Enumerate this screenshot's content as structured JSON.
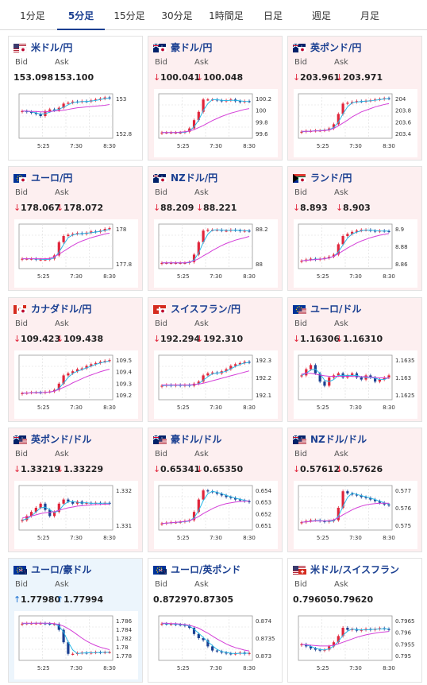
{
  "tabs": [
    {
      "label": "1分足",
      "active": false
    },
    {
      "label": "5分足",
      "active": true
    },
    {
      "label": "15分足",
      "active": false
    },
    {
      "label": "30分足",
      "active": false
    },
    {
      "label": "1時間足",
      "active": false
    },
    {
      "label": "日足",
      "active": false
    },
    {
      "label": "週足",
      "active": false
    },
    {
      "label": "月足",
      "active": false
    }
  ],
  "labels": {
    "bid": "Bid",
    "ask": "Ask"
  },
  "colors": {
    "up_candle": "#e0243a",
    "down_candle": "#1a3f91",
    "ma_short": "#2ab7e6",
    "ma_long": "#d440d8",
    "down_arrow": "#e0243a",
    "up_arrow": "#1a6fd0",
    "link": "#1a3f91"
  },
  "cards": [
    {
      "pair": "米ドル/円",
      "flag": "us-jp-flag-icon",
      "trend": "flat",
      "arrow": "",
      "bid": "153.098",
      "ask": "153.100",
      "chart_data": {
        "type": "candlestick",
        "x_ticks": [
          "5:25",
          "7:30",
          "8:30"
        ],
        "y_ticks": [
          "153",
          "152.8"
        ],
        "close": [
          0.62,
          0.6,
          0.58,
          0.55,
          0.5,
          0.62,
          0.66,
          0.64,
          0.7,
          0.8,
          0.82,
          0.85,
          0.84,
          0.86,
          0.85,
          0.88,
          0.9,
          0.92,
          0.95,
          0.93
        ],
        "ma_long": [
          0.62,
          0.62,
          0.61,
          0.61,
          0.6,
          0.6,
          0.61,
          0.62,
          0.63,
          0.64,
          0.66,
          0.68,
          0.7,
          0.71,
          0.72,
          0.73,
          0.74,
          0.75,
          0.76,
          0.78
        ]
      }
    },
    {
      "pair": "豪ドル/円",
      "flag": "au-jp-flag-icon",
      "trend": "down",
      "arrow": "↓",
      "bid": "100.041",
      "ask": "100.048",
      "chart_data": {
        "type": "candlestick",
        "x_ticks": [
          "5:25",
          "7:30",
          "8:30"
        ],
        "y_ticks": [
          "100.2",
          "100",
          "99.8",
          "99.6"
        ],
        "close": [
          0.1,
          0.1,
          0.1,
          0.1,
          0.1,
          0.12,
          0.2,
          0.4,
          0.6,
          0.9,
          0.9,
          0.9,
          0.88,
          0.86,
          0.88,
          0.9,
          0.86,
          0.84,
          0.86,
          0.85
        ],
        "ma_long": [
          0.1,
          0.1,
          0.1,
          0.1,
          0.11,
          0.12,
          0.14,
          0.17,
          0.22,
          0.27,
          0.33,
          0.39,
          0.44,
          0.49,
          0.53,
          0.57,
          0.6,
          0.63,
          0.66,
          0.68
        ]
      }
    },
    {
      "pair": "英ポンド/円",
      "flag": "gb-jp-flag-icon",
      "trend": "down",
      "arrow": "↓",
      "bid": "203.961",
      "ask": "203.971",
      "chart_data": {
        "type": "candlestick",
        "x_ticks": [
          "5:25",
          "7:30",
          "8:30"
        ],
        "y_ticks": [
          "204",
          "203.8",
          "203.6",
          "203.4"
        ],
        "close": [
          0.12,
          0.14,
          0.14,
          0.15,
          0.15,
          0.16,
          0.2,
          0.3,
          0.55,
          0.8,
          0.82,
          0.84,
          0.86,
          0.85,
          0.87,
          0.88,
          0.9,
          0.91,
          0.93,
          0.92
        ],
        "ma_long": [
          0.13,
          0.13,
          0.13,
          0.14,
          0.14,
          0.15,
          0.16,
          0.2,
          0.26,
          0.33,
          0.4,
          0.48,
          0.54,
          0.6,
          0.64,
          0.68,
          0.72,
          0.75,
          0.78,
          0.8
        ]
      }
    },
    {
      "pair": "ユーロ/円",
      "flag": "eu-jp-flag-icon",
      "trend": "down",
      "arrow": "↓",
      "bid": "178.067",
      "ask": "178.072",
      "chart_data": {
        "type": "candlestick",
        "x_ticks": [
          "5:25",
          "7:30",
          "8:30"
        ],
        "y_ticks": [
          "178",
          "177.8"
        ],
        "close": [
          0.2,
          0.2,
          0.2,
          0.18,
          0.18,
          0.18,
          0.2,
          0.28,
          0.6,
          0.75,
          0.78,
          0.8,
          0.82,
          0.8,
          0.83,
          0.86,
          0.85,
          0.88,
          0.92,
          0.94
        ],
        "ma_long": [
          0.2,
          0.2,
          0.2,
          0.2,
          0.2,
          0.2,
          0.21,
          0.25,
          0.31,
          0.38,
          0.45,
          0.52,
          0.58,
          0.63,
          0.67,
          0.71,
          0.74,
          0.77,
          0.8,
          0.82
        ]
      }
    },
    {
      "pair": "NZドル/円",
      "flag": "nz-jp-flag-icon",
      "trend": "down",
      "arrow": "↓",
      "bid": "88.209",
      "ask": "88.221",
      "chart_data": {
        "type": "candlestick",
        "x_ticks": [
          "5:25",
          "7:30",
          "8:30"
        ],
        "y_ticks": [
          "88.2",
          "88"
        ],
        "close": [
          0.1,
          0.1,
          0.1,
          0.1,
          0.1,
          0.1,
          0.12,
          0.3,
          0.6,
          0.88,
          0.9,
          0.9,
          0.9,
          0.88,
          0.88,
          0.9,
          0.89,
          0.87,
          0.88,
          0.87
        ],
        "ma_long": [
          0.1,
          0.1,
          0.1,
          0.1,
          0.1,
          0.1,
          0.12,
          0.15,
          0.2,
          0.27,
          0.33,
          0.4,
          0.46,
          0.52,
          0.57,
          0.61,
          0.65,
          0.68,
          0.71,
          0.74
        ]
      }
    },
    {
      "pair": "ランド/円",
      "flag": "za-jp-flag-icon",
      "trend": "down",
      "arrow": "↓",
      "bid": "8.893",
      "ask": "8.903",
      "chart_data": {
        "type": "candlestick",
        "x_ticks": [
          "5:25",
          "7:30",
          "8:30"
        ],
        "y_ticks": [
          "8.9",
          "8.88",
          "8.86"
        ],
        "close": [
          0.15,
          0.18,
          0.2,
          0.18,
          0.2,
          0.22,
          0.25,
          0.3,
          0.55,
          0.75,
          0.8,
          0.85,
          0.88,
          0.9,
          0.9,
          0.88,
          0.86,
          0.88,
          0.87,
          0.86
        ],
        "ma_long": [
          0.15,
          0.16,
          0.17,
          0.18,
          0.19,
          0.2,
          0.22,
          0.26,
          0.32,
          0.39,
          0.46,
          0.52,
          0.58,
          0.63,
          0.67,
          0.71,
          0.74,
          0.77,
          0.79,
          0.81
        ]
      }
    },
    {
      "pair": "カナダドル/円",
      "flag": "ca-jp-flag-icon",
      "trend": "down",
      "arrow": "↓",
      "bid": "109.423",
      "ask": "109.438",
      "chart_data": {
        "type": "candlestick",
        "x_ticks": [
          "5:25",
          "7:30",
          "8:30"
        ],
        "y_ticks": [
          "109.5",
          "109.4",
          "109.3",
          "109.2"
        ],
        "close": [
          0.12,
          0.13,
          0.14,
          0.14,
          0.13,
          0.15,
          0.16,
          0.2,
          0.35,
          0.55,
          0.6,
          0.65,
          0.7,
          0.72,
          0.78,
          0.82,
          0.85,
          0.88,
          0.9,
          0.92
        ],
        "ma_long": [
          0.12,
          0.12,
          0.13,
          0.13,
          0.13,
          0.14,
          0.15,
          0.17,
          0.21,
          0.26,
          0.31,
          0.37,
          0.42,
          0.47,
          0.52,
          0.56,
          0.6,
          0.64,
          0.67,
          0.7
        ]
      }
    },
    {
      "pair": "スイスフラン/円",
      "flag": "ch-jp-flag-icon",
      "trend": "down",
      "arrow": "↓",
      "bid": "192.294",
      "ask": "192.310",
      "chart_data": {
        "type": "candlestick",
        "x_ticks": [
          "5:25",
          "7:30",
          "8:30"
        ],
        "y_ticks": [
          "192.3",
          "192.2",
          "192.1"
        ],
        "close": [
          0.3,
          0.32,
          0.3,
          0.32,
          0.3,
          0.32,
          0.3,
          0.35,
          0.4,
          0.55,
          0.6,
          0.62,
          0.6,
          0.65,
          0.7,
          0.78,
          0.82,
          0.85,
          0.88,
          0.86
        ],
        "ma_long": [
          0.32,
          0.32,
          0.32,
          0.32,
          0.32,
          0.32,
          0.32,
          0.33,
          0.34,
          0.36,
          0.39,
          0.42,
          0.45,
          0.48,
          0.51,
          0.54,
          0.57,
          0.6,
          0.63,
          0.66
        ]
      }
    },
    {
      "pair": "ユーロ/ドル",
      "flag": "eu-us-flag-icon",
      "trend": "down",
      "arrow": "↓",
      "bid": "1.16306",
      "ask": "1.16310",
      "chart_data": {
        "type": "candlestick",
        "x_ticks": [
          "5:25",
          "7:30",
          "8:30"
        ],
        "y_ticks": [
          "1.1635",
          "1.163",
          "1.1625"
        ],
        "close": [
          0.55,
          0.7,
          0.8,
          0.6,
          0.4,
          0.3,
          0.5,
          0.55,
          0.6,
          0.5,
          0.55,
          0.6,
          0.5,
          0.45,
          0.55,
          0.5,
          0.4,
          0.45,
          0.5,
          0.55
        ],
        "ma_long": [
          0.58,
          0.6,
          0.6,
          0.58,
          0.56,
          0.54,
          0.53,
          0.53,
          0.53,
          0.53,
          0.53,
          0.53,
          0.52,
          0.52,
          0.52,
          0.51,
          0.5,
          0.49,
          0.49,
          0.48
        ]
      }
    },
    {
      "pair": "英ポンド/ドル",
      "flag": "gb-us-flag-icon",
      "trend": "down",
      "arrow": "↓",
      "bid": "1.33219",
      "ask": "1.33229",
      "chart_data": {
        "type": "candlestick",
        "x_ticks": [
          "5:25",
          "7:30",
          "8:30"
        ],
        "y_ticks": [
          "1.332",
          "1.331"
        ],
        "close": [
          0.2,
          0.3,
          0.4,
          0.5,
          0.6,
          0.45,
          0.3,
          0.4,
          0.6,
          0.7,
          0.65,
          0.6,
          0.65,
          0.6,
          0.62,
          0.6,
          0.62,
          0.6,
          0.62,
          0.6
        ],
        "ma_long": [
          0.25,
          0.28,
          0.3,
          0.33,
          0.36,
          0.38,
          0.39,
          0.41,
          0.44,
          0.47,
          0.5,
          0.52,
          0.54,
          0.55,
          0.56,
          0.57,
          0.58,
          0.58,
          0.59,
          0.59
        ]
      }
    },
    {
      "pair": "豪ドル/ドル",
      "flag": "au-us-flag-icon",
      "trend": "down",
      "arrow": "↓",
      "bid": "0.65341",
      "ask": "0.65350",
      "chart_data": {
        "type": "candlestick",
        "x_ticks": [
          "5:25",
          "7:30",
          "8:30"
        ],
        "y_ticks": [
          "0.654",
          "0.653",
          "0.652",
          "0.651"
        ],
        "close": [
          0.12,
          0.14,
          0.15,
          0.15,
          0.16,
          0.18,
          0.2,
          0.4,
          0.7,
          0.92,
          0.9,
          0.88,
          0.84,
          0.8,
          0.76,
          0.74,
          0.7,
          0.68,
          0.66,
          0.64
        ],
        "ma_long": [
          0.12,
          0.13,
          0.14,
          0.15,
          0.16,
          0.17,
          0.19,
          0.23,
          0.29,
          0.36,
          0.42,
          0.48,
          0.53,
          0.57,
          0.6,
          0.62,
          0.64,
          0.65,
          0.66,
          0.66
        ]
      }
    },
    {
      "pair": "NZドル/ドル",
      "flag": "nz-us-flag-icon",
      "trend": "down",
      "arrow": "↓",
      "bid": "0.57612",
      "ask": "0.57626",
      "chart_data": {
        "type": "candlestick",
        "x_ticks": [
          "5:25",
          "7:30",
          "8:30"
        ],
        "y_ticks": [
          "0.577",
          "0.576",
          "0.575"
        ],
        "close": [
          0.15,
          0.18,
          0.2,
          0.2,
          0.18,
          0.16,
          0.18,
          0.2,
          0.5,
          0.9,
          0.85,
          0.82,
          0.8,
          0.76,
          0.74,
          0.7,
          0.66,
          0.62,
          0.58,
          0.56
        ],
        "ma_long": [
          0.15,
          0.16,
          0.17,
          0.18,
          0.18,
          0.18,
          0.19,
          0.21,
          0.26,
          0.33,
          0.39,
          0.45,
          0.5,
          0.54,
          0.57,
          0.59,
          0.6,
          0.61,
          0.61,
          0.61
        ]
      }
    },
    {
      "pair": "ユーロ/豪ドル",
      "flag": "eu-au-flag-icon",
      "trend": "up",
      "arrow": "↑",
      "bid": "1.77980",
      "ask": "1.77994",
      "chart_data": {
        "type": "candlestick",
        "x_ticks": [
          "5:25",
          "7:30",
          "8:30"
        ],
        "y_ticks": [
          "1.786",
          "1.784",
          "1.782",
          "1.78",
          "1.778"
        ],
        "close": [
          0.85,
          0.86,
          0.86,
          0.86,
          0.86,
          0.85,
          0.84,
          0.84,
          0.7,
          0.4,
          0.12,
          0.12,
          0.14,
          0.15,
          0.14,
          0.15,
          0.16,
          0.15,
          0.16,
          0.16
        ],
        "ma_long": [
          0.86,
          0.86,
          0.86,
          0.86,
          0.86,
          0.86,
          0.86,
          0.85,
          0.83,
          0.79,
          0.73,
          0.66,
          0.58,
          0.5,
          0.43,
          0.37,
          0.32,
          0.28,
          0.25,
          0.22
        ]
      }
    },
    {
      "pair": "ユーロ/英ポンド",
      "flag": "eu-gb-flag-icon",
      "trend": "flat",
      "arrow": "",
      "bid": "0.87297",
      "ask": "0.87305",
      "chart_data": {
        "type": "candlestick",
        "x_ticks": [
          "5:25",
          "7:30",
          "8:30"
        ],
        "y_ticks": [
          "0.874",
          "0.8735",
          "0.873"
        ],
        "close": [
          0.85,
          0.84,
          0.84,
          0.83,
          0.82,
          0.8,
          0.75,
          0.6,
          0.5,
          0.45,
          0.3,
          0.2,
          0.18,
          0.15,
          0.13,
          0.12,
          0.13,
          0.15,
          0.12,
          0.14
        ],
        "ma_long": [
          0.86,
          0.86,
          0.85,
          0.85,
          0.84,
          0.83,
          0.81,
          0.78,
          0.74,
          0.68,
          0.62,
          0.55,
          0.48,
          0.42,
          0.36,
          0.31,
          0.27,
          0.24,
          0.21,
          0.19
        ]
      }
    },
    {
      "pair": "米ドル/スイスフラン",
      "flag": "us-ch-flag-icon",
      "trend": "flat",
      "arrow": "",
      "bid": "0.79605",
      "ask": "0.79620",
      "chart_data": {
        "type": "candlestick",
        "x_ticks": [
          "5:25",
          "7:30",
          "8:30"
        ],
        "y_ticks": [
          "0.7965",
          "0.796",
          "0.7955",
          "0.795"
        ],
        "close": [
          0.35,
          0.3,
          0.25,
          0.22,
          0.2,
          0.22,
          0.3,
          0.4,
          0.55,
          0.75,
          0.7,
          0.72,
          0.68,
          0.7,
          0.72,
          0.7,
          0.72,
          0.74,
          0.72,
          0.7
        ],
        "ma_long": [
          0.35,
          0.34,
          0.33,
          0.32,
          0.31,
          0.31,
          0.31,
          0.33,
          0.36,
          0.4,
          0.44,
          0.48,
          0.52,
          0.55,
          0.58,
          0.6,
          0.62,
          0.64,
          0.65,
          0.66
        ]
      }
    }
  ]
}
